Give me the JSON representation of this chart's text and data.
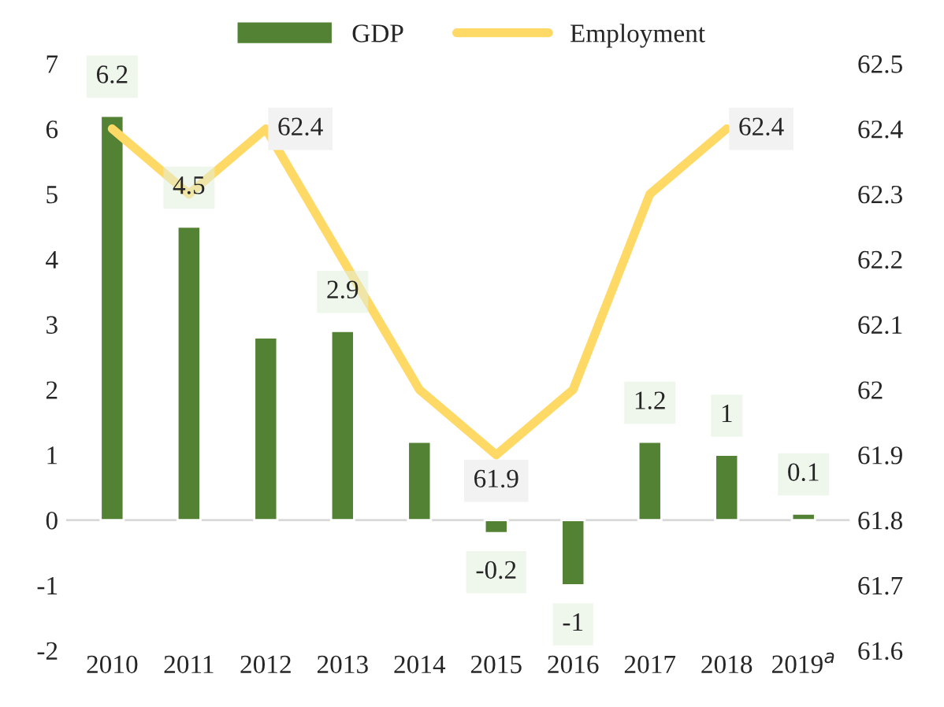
{
  "chart_data": {
    "type": "bar",
    "categories": [
      "2010",
      "2011",
      "2012",
      "2013",
      "2014",
      "2015",
      "2016",
      "2017",
      "2018",
      "2019$^{a}$"
    ],
    "series": [
      {
        "name": "GDP",
        "color": "#548235",
        "values": [
          6.2,
          4.5,
          2.8,
          2.9,
          1.2,
          -0.2,
          -1,
          1.2,
          1,
          0.1
        ],
        "value_labels": [
          "6.2",
          "4.5",
          null,
          "2.9",
          null,
          "-0.2",
          "-1",
          "1.2",
          "1",
          "0.1"
        ]
      },
      {
        "name": "Employment",
        "type": "line",
        "axis": "y2",
        "color": "#ffd966",
        "values": [
          62.4,
          62.3,
          62.4,
          62.2,
          62.0,
          61.9,
          62.0,
          62.3,
          62.4,
          null
        ],
        "value_labels": [
          null,
          null,
          "62.4",
          null,
          null,
          "61.9",
          null,
          null,
          "62.4",
          null
        ]
      }
    ],
    "ylim": [
      -2,
      7
    ],
    "yticks": [
      -2,
      -1,
      0,
      1,
      2,
      3,
      4,
      5,
      6,
      7
    ],
    "y2lim": [
      61.6,
      62.5
    ],
    "y2ticks": [
      61.6,
      61.7,
      61.8,
      61.9,
      62,
      62.1,
      62.2,
      62.3,
      62.4,
      62.5
    ],
    "ref_lines": [
      {
        "axis": "y",
        "value": 0,
        "color": "#d9d9d9"
      }
    ],
    "legend": "top",
    "grid": false,
    "marker": "none",
    "line_style": "solid"
  }
}
